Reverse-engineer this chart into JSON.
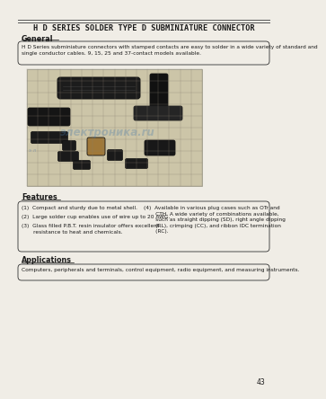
{
  "title": "H D SERIES SOLDER TYPE D SUBMINIATURE CONNECTOR",
  "page_number": "43",
  "section_general": "General",
  "general_text": "H D Series subminiature connectors with stamped contacts are easy to solder in a wide variety of standard and single conductor cables. 9, 15, 25 and 37-contact models available.",
  "section_features": "Features",
  "features_left": [
    "(1)  Compact and sturdy due to metal shell.",
    "(2)  Large solder cup enables use of wire up to 20 AWG.",
    "(3)  Glass filled P.B.T. resin insulator offers excellent\n       resistance to heat and chemicals."
  ],
  "features_right": "(4)  Available in various plug cases such as OTr and\n       CTH. A wide variety of combinations available,\n       such as straight dipping (SD), right angle dipping\n       (RL), crimping (CC), and ribbon IDC termination\n       (RC).",
  "section_applications": "Applications",
  "applications_text": "Computers, peripherals and terminals, control equipment, radio equipment, and measuring instruments.",
  "watermark_text": "электроника.ru",
  "title_fontsize": 6.2,
  "body_fontsize": 4.2,
  "section_fontsize": 5.8,
  "header_line_color": "#555555",
  "text_color": "#1a1a1a",
  "page_bg": "#f0ede6"
}
